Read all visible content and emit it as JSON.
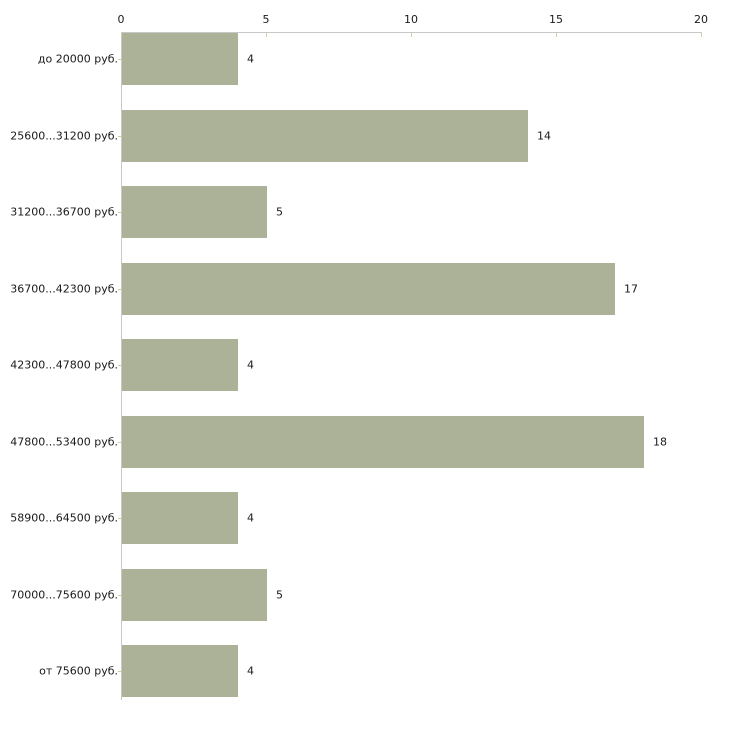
{
  "chart_data": {
    "type": "bar",
    "orientation": "horizontal",
    "title": "",
    "xlabel": "",
    "ylabel": "",
    "categories": [
      "до 20000 руб.",
      "25600...31200 руб.",
      "31200...36700 руб.",
      "36700...42300 руб.",
      "42300...47800 руб.",
      "47800...53400 руб.",
      "58900...64500 руб.",
      "70000...75600 руб.",
      "от 75600 руб."
    ],
    "values": [
      4,
      14,
      5,
      17,
      4,
      18,
      4,
      5,
      4
    ],
    "value_labels": [
      "4",
      "14",
      "5",
      "17",
      "4",
      "18",
      "4",
      "5",
      "4"
    ],
    "xlim": [
      0,
      20
    ],
    "x_ticks": [
      0,
      5,
      10,
      15,
      20
    ],
    "x_tick_labels": [
      "0",
      "5",
      "10",
      "15",
      "20"
    ],
    "axis_position": "top",
    "grid": false,
    "legend": false,
    "colors": {
      "bar_fill": "#acb298",
      "axis_line": "#c8c8c8",
      "tick_mark": "#cbd1a0",
      "text": "#1a1a1a",
      "background": "#ffffff"
    }
  }
}
